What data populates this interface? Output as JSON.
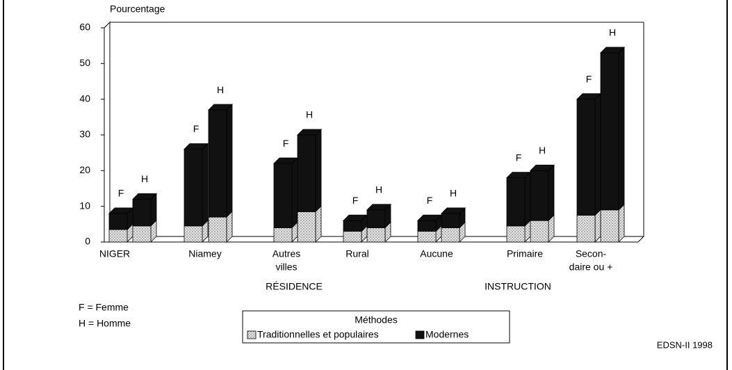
{
  "chart_data": {
    "type": "bar3d_stacked",
    "y_label": "Pourcentage",
    "ylim": [
      0,
      60
    ],
    "yticks": [
      0,
      10,
      20,
      30,
      40,
      50,
      60
    ],
    "categories": [
      "F",
      "H",
      "F",
      "H",
      "F",
      "H",
      "F",
      "H",
      "F",
      "H",
      "F",
      "H",
      "F",
      "H"
    ],
    "groups": [
      {
        "label": [
          "NIGER"
        ]
      },
      {
        "label": [
          "Niamey"
        ]
      },
      {
        "label": [
          "Autres",
          "villes"
        ]
      },
      {
        "label": [
          "Rural"
        ]
      },
      {
        "label": [
          "Aucune"
        ]
      },
      {
        "label": [
          "Primaire"
        ]
      },
      {
        "label": [
          "Secon-",
          "daire ou +"
        ]
      }
    ],
    "sections": [
      "RÉSIDENCE",
      "INSTRUCTION"
    ],
    "legend_title": "Méthodes",
    "series": [
      {
        "name": "Traditionnelles et populaires",
        "color": "#d8d8d8",
        "values": [
          3.5,
          4.5,
          4.5,
          7,
          4,
          8.5,
          3,
          4,
          3,
          4,
          4.5,
          6,
          7.5,
          9
        ]
      },
      {
        "name": "Modernes",
        "color": "#111111",
        "values": [
          4.5,
          7.5,
          21.5,
          30,
          18,
          21.5,
          3,
          5,
          3,
          4,
          13.5,
          14,
          32.5,
          44
        ]
      }
    ],
    "notes": [
      "F = Femme",
      "H = Homme"
    ],
    "source": "EDSN-II 1998"
  }
}
